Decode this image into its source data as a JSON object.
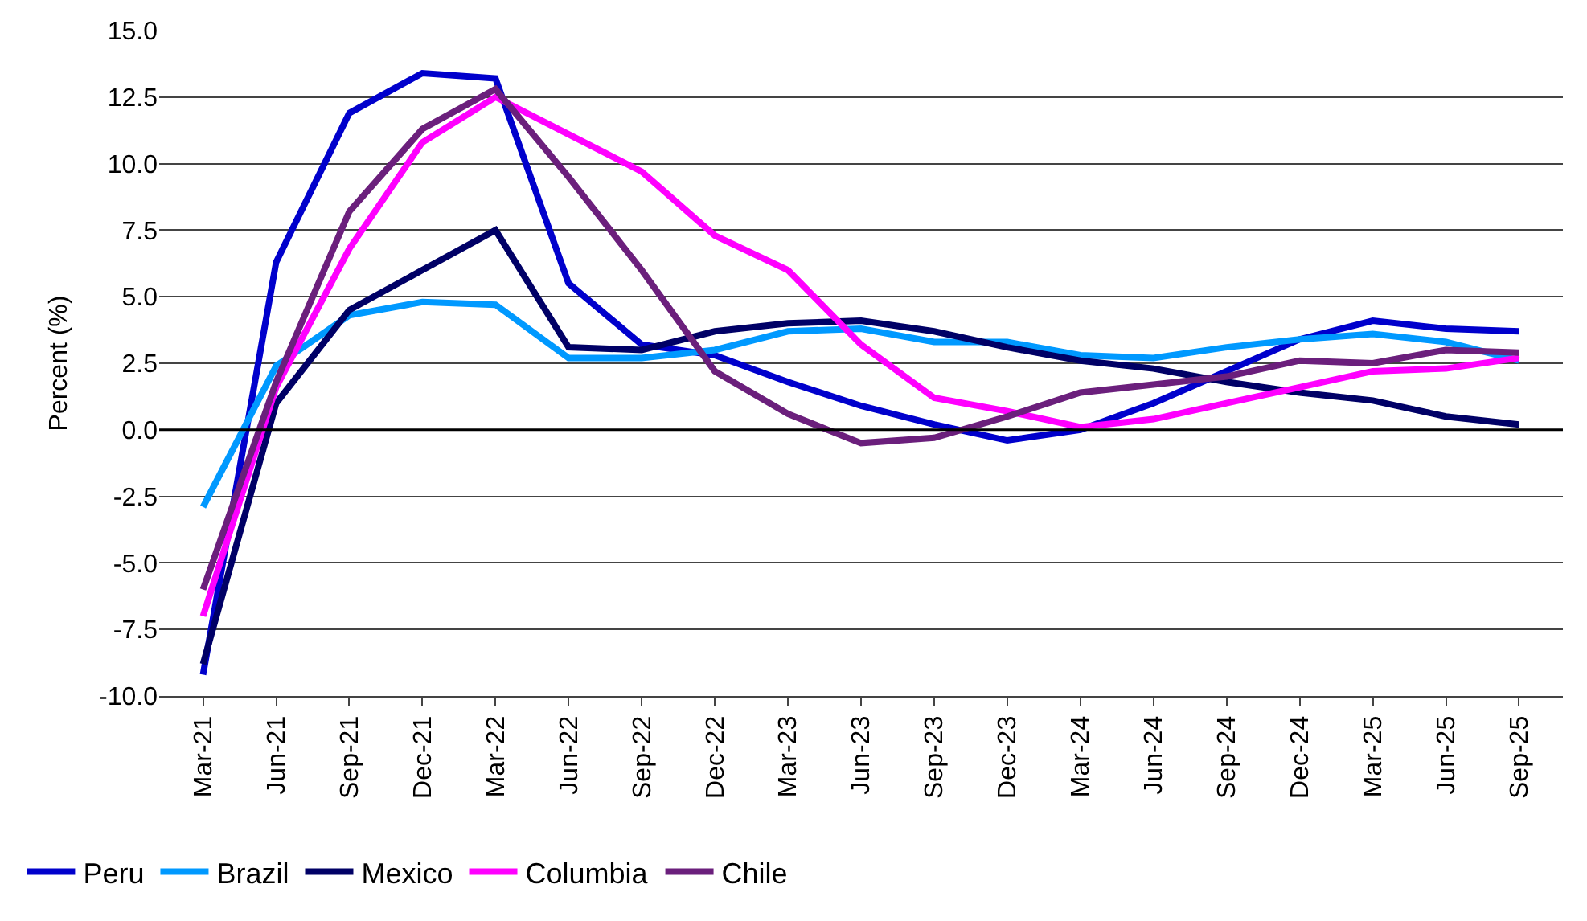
{
  "chart_data": {
    "type": "line",
    "ylabel": "Percent (%)",
    "categories": [
      "Mar-21",
      "Jun-21",
      "Sep-21",
      "Dec-21",
      "Mar-22",
      "Jun-22",
      "Sep-22",
      "Dec-22",
      "Mar-23",
      "Jun-23",
      "Sep-23",
      "Dec-23",
      "Mar-24",
      "Jun-24",
      "Sep-24",
      "Dec-24",
      "Mar-25",
      "Jun-25",
      "Sep-25"
    ],
    "series": [
      {
        "name": "Peru",
        "color": "#0000cc",
        "values": [
          -9.2,
          6.3,
          11.9,
          13.4,
          13.2,
          5.5,
          3.2,
          2.8,
          1.8,
          0.9,
          0.2,
          -0.4,
          0.0,
          1.0,
          2.2,
          3.4,
          4.1,
          3.8,
          3.7
        ]
      },
      {
        "name": "Brazil",
        "color": "#0099ff",
        "values": [
          -2.9,
          2.4,
          4.3,
          4.8,
          4.7,
          2.7,
          2.7,
          3.0,
          3.7,
          3.8,
          3.3,
          3.3,
          2.8,
          2.7,
          3.1,
          3.4,
          3.6,
          3.3,
          2.6
        ]
      },
      {
        "name": "Mexico",
        "color": "#000066",
        "values": [
          -8.8,
          1.0,
          4.5,
          6.0,
          7.5,
          3.1,
          3.0,
          3.7,
          4.0,
          4.1,
          3.7,
          3.1,
          2.6,
          2.3,
          1.8,
          1.4,
          1.1,
          0.5,
          0.2
        ]
      },
      {
        "name": "Columbia",
        "color": "#ff00ff",
        "values": [
          -7.0,
          1.6,
          6.8,
          10.8,
          12.5,
          11.1,
          9.7,
          7.3,
          6.0,
          3.2,
          1.2,
          0.7,
          0.1,
          0.4,
          1.0,
          1.6,
          2.2,
          2.3,
          2.7
        ]
      },
      {
        "name": "Chile",
        "color": "#6b1f7c",
        "values": [
          -6.0,
          1.8,
          8.2,
          11.3,
          12.8,
          9.5,
          6.0,
          2.2,
          0.6,
          -0.5,
          -0.3,
          0.5,
          1.4,
          1.7,
          2.0,
          2.6,
          2.5,
          3.0,
          2.9
        ]
      }
    ],
    "ylim": [
      -10,
      15
    ],
    "yticks": [
      {
        "value": -10,
        "label": "-10.0"
      },
      {
        "value": -7.5,
        "label": "-7.5"
      },
      {
        "value": -5,
        "label": "-5.0"
      },
      {
        "value": -2.5,
        "label": "-2.5"
      },
      {
        "value": 0,
        "label": "0.0"
      },
      {
        "value": 2.5,
        "label": "2.5"
      },
      {
        "value": 5,
        "label": "5.0"
      },
      {
        "value": 7.5,
        "label": "7.5"
      },
      {
        "value": 10,
        "label": "10.0"
      },
      {
        "value": 12.5,
        "label": "12.5"
      },
      {
        "value": 15,
        "label": "15.0"
      }
    ],
    "ref_lines": [
      {
        "axis": "y",
        "value": 0,
        "color": "#000000"
      }
    ],
    "grid": "y",
    "legend": "bottom",
    "marker": "none",
    "line_style": "solid"
  }
}
